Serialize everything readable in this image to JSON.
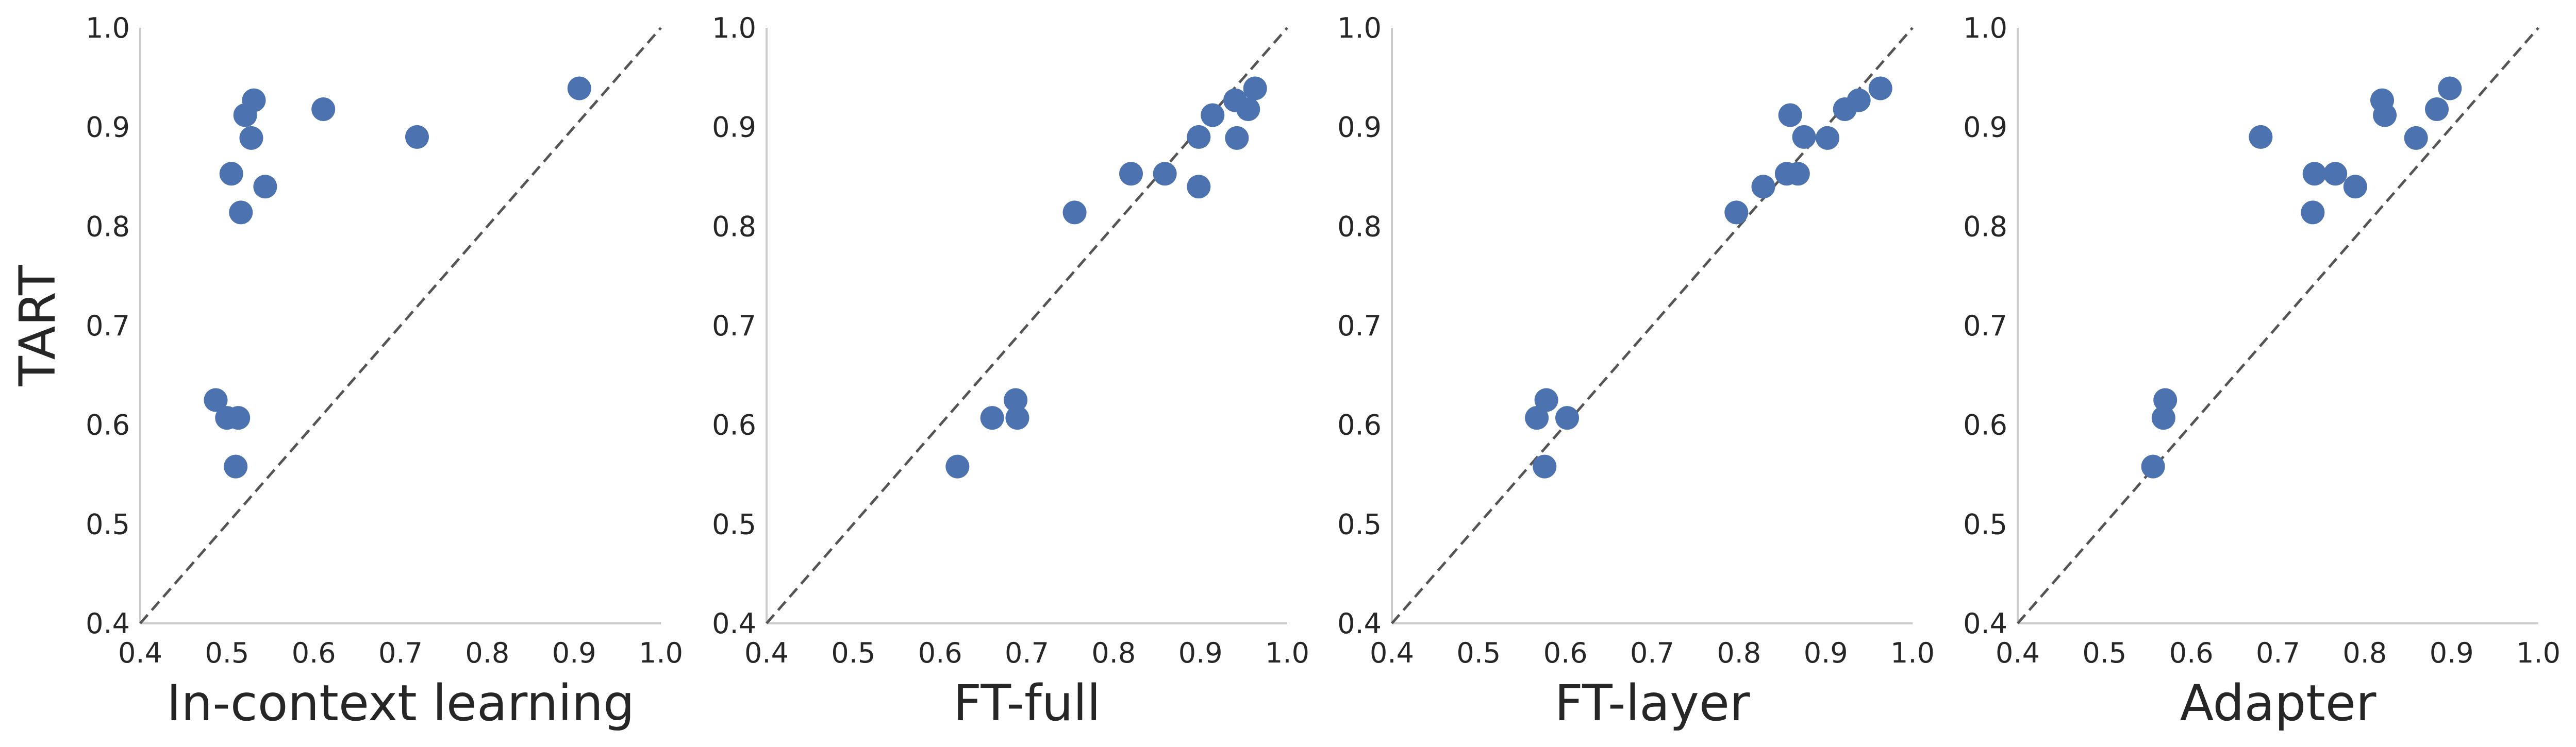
{
  "colors": {
    "marker": "#4c72b0",
    "axis": "#cccccc",
    "diagonal": "#555555",
    "text": "#262626",
    "background": "#ffffff"
  },
  "chart_data": [
    {
      "type": "scatter",
      "xlabel": "In-context learning",
      "ylabel": "TART",
      "xlim": [
        0.4,
        1.0
      ],
      "ylim": [
        0.4,
        1.0
      ],
      "xticks": [
        "0.4",
        "0.5",
        "0.6",
        "0.7",
        "0.8",
        "0.9",
        "1.0"
      ],
      "yticks": [
        "0.4",
        "0.5",
        "0.6",
        "0.7",
        "0.8",
        "0.9",
        "1.0"
      ],
      "reference_line": "y = x (dashed)",
      "grid": false,
      "points": [
        {
          "x": 0.906,
          "y": 0.939
        },
        {
          "x": 0.531,
          "y": 0.927
        },
        {
          "x": 0.611,
          "y": 0.918
        },
        {
          "x": 0.521,
          "y": 0.912
        },
        {
          "x": 0.719,
          "y": 0.89
        },
        {
          "x": 0.528,
          "y": 0.889
        },
        {
          "x": 0.505,
          "y": 0.853
        },
        {
          "x": 0.544,
          "y": 0.84
        },
        {
          "x": 0.516,
          "y": 0.814
        },
        {
          "x": 0.487,
          "y": 0.625
        },
        {
          "x": 0.5,
          "y": 0.607
        },
        {
          "x": 0.513,
          "y": 0.607
        },
        {
          "x": 0.51,
          "y": 0.558
        }
      ]
    },
    {
      "type": "scatter",
      "xlabel": "FT-full",
      "ylabel": "",
      "xlim": [
        0.4,
        1.0
      ],
      "ylim": [
        0.4,
        1.0
      ],
      "xticks": [
        "0.4",
        "0.5",
        "0.6",
        "0.7",
        "0.8",
        "0.9",
        "1.0"
      ],
      "yticks": [
        "0.4",
        "0.5",
        "0.6",
        "0.7",
        "0.8",
        "0.9",
        "1.0"
      ],
      "reference_line": "y = x (dashed)",
      "grid": false,
      "points": [
        {
          "x": 0.963,
          "y": 0.939
        },
        {
          "x": 0.94,
          "y": 0.927
        },
        {
          "x": 0.955,
          "y": 0.918
        },
        {
          "x": 0.914,
          "y": 0.912
        },
        {
          "x": 0.898,
          "y": 0.89
        },
        {
          "x": 0.942,
          "y": 0.889
        },
        {
          "x": 0.82,
          "y": 0.853
        },
        {
          "x": 0.859,
          "y": 0.853
        },
        {
          "x": 0.898,
          "y": 0.84
        },
        {
          "x": 0.755,
          "y": 0.814
        },
        {
          "x": 0.687,
          "y": 0.625
        },
        {
          "x": 0.66,
          "y": 0.607
        },
        {
          "x": 0.689,
          "y": 0.607
        },
        {
          "x": 0.62,
          "y": 0.558
        }
      ]
    },
    {
      "type": "scatter",
      "xlabel": "FT-layer",
      "ylabel": "",
      "xlim": [
        0.4,
        1.0
      ],
      "ylim": [
        0.4,
        1.0
      ],
      "xticks": [
        "0.4",
        "0.5",
        "0.6",
        "0.7",
        "0.8",
        "0.9",
        "1.0"
      ],
      "yticks": [
        "0.4",
        "0.5",
        "0.6",
        "0.7",
        "0.8",
        "0.9",
        "1.0"
      ],
      "reference_line": "y = x (dashed)",
      "grid": false,
      "points": [
        {
          "x": 0.963,
          "y": 0.939
        },
        {
          "x": 0.938,
          "y": 0.927
        },
        {
          "x": 0.922,
          "y": 0.918
        },
        {
          "x": 0.859,
          "y": 0.912
        },
        {
          "x": 0.875,
          "y": 0.89
        },
        {
          "x": 0.902,
          "y": 0.889
        },
        {
          "x": 0.855,
          "y": 0.853
        },
        {
          "x": 0.868,
          "y": 0.853
        },
        {
          "x": 0.828,
          "y": 0.84
        },
        {
          "x": 0.797,
          "y": 0.814
        },
        {
          "x": 0.578,
          "y": 0.625
        },
        {
          "x": 0.567,
          "y": 0.607
        },
        {
          "x": 0.602,
          "y": 0.607
        },
        {
          "x": 0.576,
          "y": 0.558
        }
      ]
    },
    {
      "type": "scatter",
      "xlabel": "Adapter",
      "ylabel": "",
      "xlim": [
        0.4,
        1.0
      ],
      "ylim": [
        0.4,
        1.0
      ],
      "xticks": [
        "0.4",
        "0.5",
        "0.6",
        "0.7",
        "0.8",
        "0.9",
        "1.0"
      ],
      "yticks": [
        "0.4",
        "0.5",
        "0.6",
        "0.7",
        "0.8",
        "0.9",
        "1.0"
      ],
      "reference_line": "y = x (dashed)",
      "grid": false,
      "points": [
        {
          "x": 0.898,
          "y": 0.939
        },
        {
          "x": 0.82,
          "y": 0.927
        },
        {
          "x": 0.883,
          "y": 0.918
        },
        {
          "x": 0.823,
          "y": 0.912
        },
        {
          "x": 0.68,
          "y": 0.89
        },
        {
          "x": 0.859,
          "y": 0.889
        },
        {
          "x": 0.742,
          "y": 0.853
        },
        {
          "x": 0.766,
          "y": 0.853
        },
        {
          "x": 0.789,
          "y": 0.84
        },
        {
          "x": 0.74,
          "y": 0.814
        },
        {
          "x": 0.57,
          "y": 0.625
        },
        {
          "x": 0.568,
          "y": 0.607
        },
        {
          "x": 0.556,
          "y": 0.558
        }
      ]
    }
  ]
}
